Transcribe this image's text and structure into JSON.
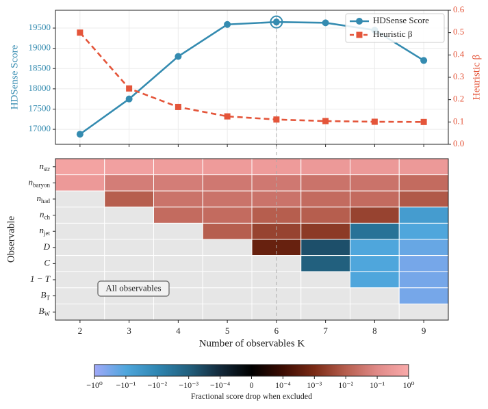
{
  "chart_data": [
    {
      "type": "line",
      "x": [
        2,
        3,
        4,
        5,
        6,
        7,
        8,
        9
      ],
      "xlim": [
        1.5,
        9.5
      ],
      "xticks": [
        2,
        3,
        4,
        5,
        6,
        7,
        8,
        9
      ],
      "ylabel": "HDSense Score",
      "y2label": "Heuristic β",
      "ylim": [
        16630,
        19940
      ],
      "yticks": [
        17000,
        17500,
        18000,
        18500,
        19000,
        19500
      ],
      "y2lim": [
        0,
        0.6
      ],
      "y2ticks": [
        {
          "value": 0,
          "label": "0.0"
        },
        0.1,
        0.2,
        0.3,
        0.4,
        0.5,
        0.6
      ],
      "grid": true,
      "legend": "upper right",
      "highlight": 6,
      "series": [
        {
          "name": "HDSense Score",
          "color": "#348bb0",
          "marker": "circle",
          "linestyle": "solid",
          "axis": "y",
          "values": [
            16880,
            17750,
            18800,
            19590,
            19650,
            19630,
            19450,
            18700
          ],
          "errors": [
            35,
            40,
            60,
            60,
            40,
            55,
            60,
            75
          ]
        },
        {
          "name": "Heuristic β",
          "color": "#e4553a",
          "marker": "square",
          "linestyle": "dashed",
          "axis": "y2",
          "values": [
            0.5,
            0.25,
            0.167,
            0.125,
            0.111,
            0.104,
            0.101,
            0.1
          ]
        }
      ]
    },
    {
      "type": "heatmap",
      "x": [
        2,
        3,
        4,
        5,
        6,
        7,
        8,
        9
      ],
      "xlim": [
        1.5,
        9.5
      ],
      "xticks": [
        2,
        3,
        4,
        5,
        6,
        7,
        8,
        9
      ],
      "xlabel": "Number of observables K",
      "ylabel": "Observable",
      "rows": [
        {
          "main": "n",
          "sub": "str"
        },
        {
          "main": "n",
          "sub": "baryon"
        },
        {
          "main": "n",
          "sub": "had"
        },
        {
          "main": "n",
          "sub": "ch"
        },
        {
          "main": "n",
          "sub": "jet"
        },
        {
          "main": "D"
        },
        {
          "main": "C"
        },
        {
          "main": "1 − T"
        },
        {
          "main": "B",
          "sub": "T"
        },
        {
          "main": "B",
          "sub": "W"
        }
      ],
      "matrix": [
        [
          0.6,
          0.5,
          0.4,
          0.35,
          0.35,
          0.3,
          0.3,
          0.3
        ],
        [
          0.3,
          0.05,
          0.05,
          0.04,
          0.04,
          0.03,
          0.03,
          0.02
        ],
        [
          null,
          0.01,
          0.03,
          0.03,
          0.03,
          0.02,
          0.02,
          0.008
        ],
        [
          null,
          null,
          0.02,
          0.02,
          0.01,
          0.01,
          0.003,
          -0.05
        ],
        [
          null,
          null,
          null,
          0.01,
          0.003,
          0.002,
          -0.003,
          -0.1
        ],
        [
          null,
          null,
          null,
          null,
          0.0005,
          -0.0005,
          -0.1,
          -0.2
        ],
        [
          null,
          null,
          null,
          null,
          null,
          -0.001,
          -0.1,
          -0.3
        ],
        [
          null,
          null,
          null,
          null,
          null,
          null,
          -0.1,
          -0.3
        ],
        [
          null,
          null,
          null,
          null,
          null,
          null,
          null,
          -0.3
        ],
        [
          null,
          null,
          null,
          null,
          null,
          null,
          null,
          null
        ]
      ],
      "annotation": "All observables",
      "colorbar_label": "Fractional score drop when excluded",
      "linthresh": 0.0001,
      "colormap": [
        "#a0a8f8",
        "#4fa6dc",
        "#2f86b2",
        "#22607e",
        "#13293a",
        "#000000",
        "#3c0c02",
        "#7a2a15",
        "#b65e4e",
        "#e08a88",
        "#f9aaaa"
      ],
      "cticks": [
        {
          "value": -1,
          "label": "−10⁰"
        },
        {
          "value": -0.1,
          "label": "−10⁻¹"
        },
        {
          "value": -0.01,
          "label": "−10⁻²"
        },
        {
          "value": -0.001,
          "label": "−10⁻³"
        },
        {
          "value": -0.0001,
          "label": "−10⁻⁴"
        },
        0,
        {
          "value": 0.0001,
          "label": "10⁻⁴"
        },
        {
          "value": 0.001,
          "label": "10⁻³"
        },
        {
          "value": 0.01,
          "label": "10⁻²"
        },
        {
          "value": 0.1,
          "label": "10⁻¹"
        },
        {
          "value": 1,
          "label": "10⁰"
        }
      ],
      "clim": [
        -1,
        1
      ]
    }
  ]
}
